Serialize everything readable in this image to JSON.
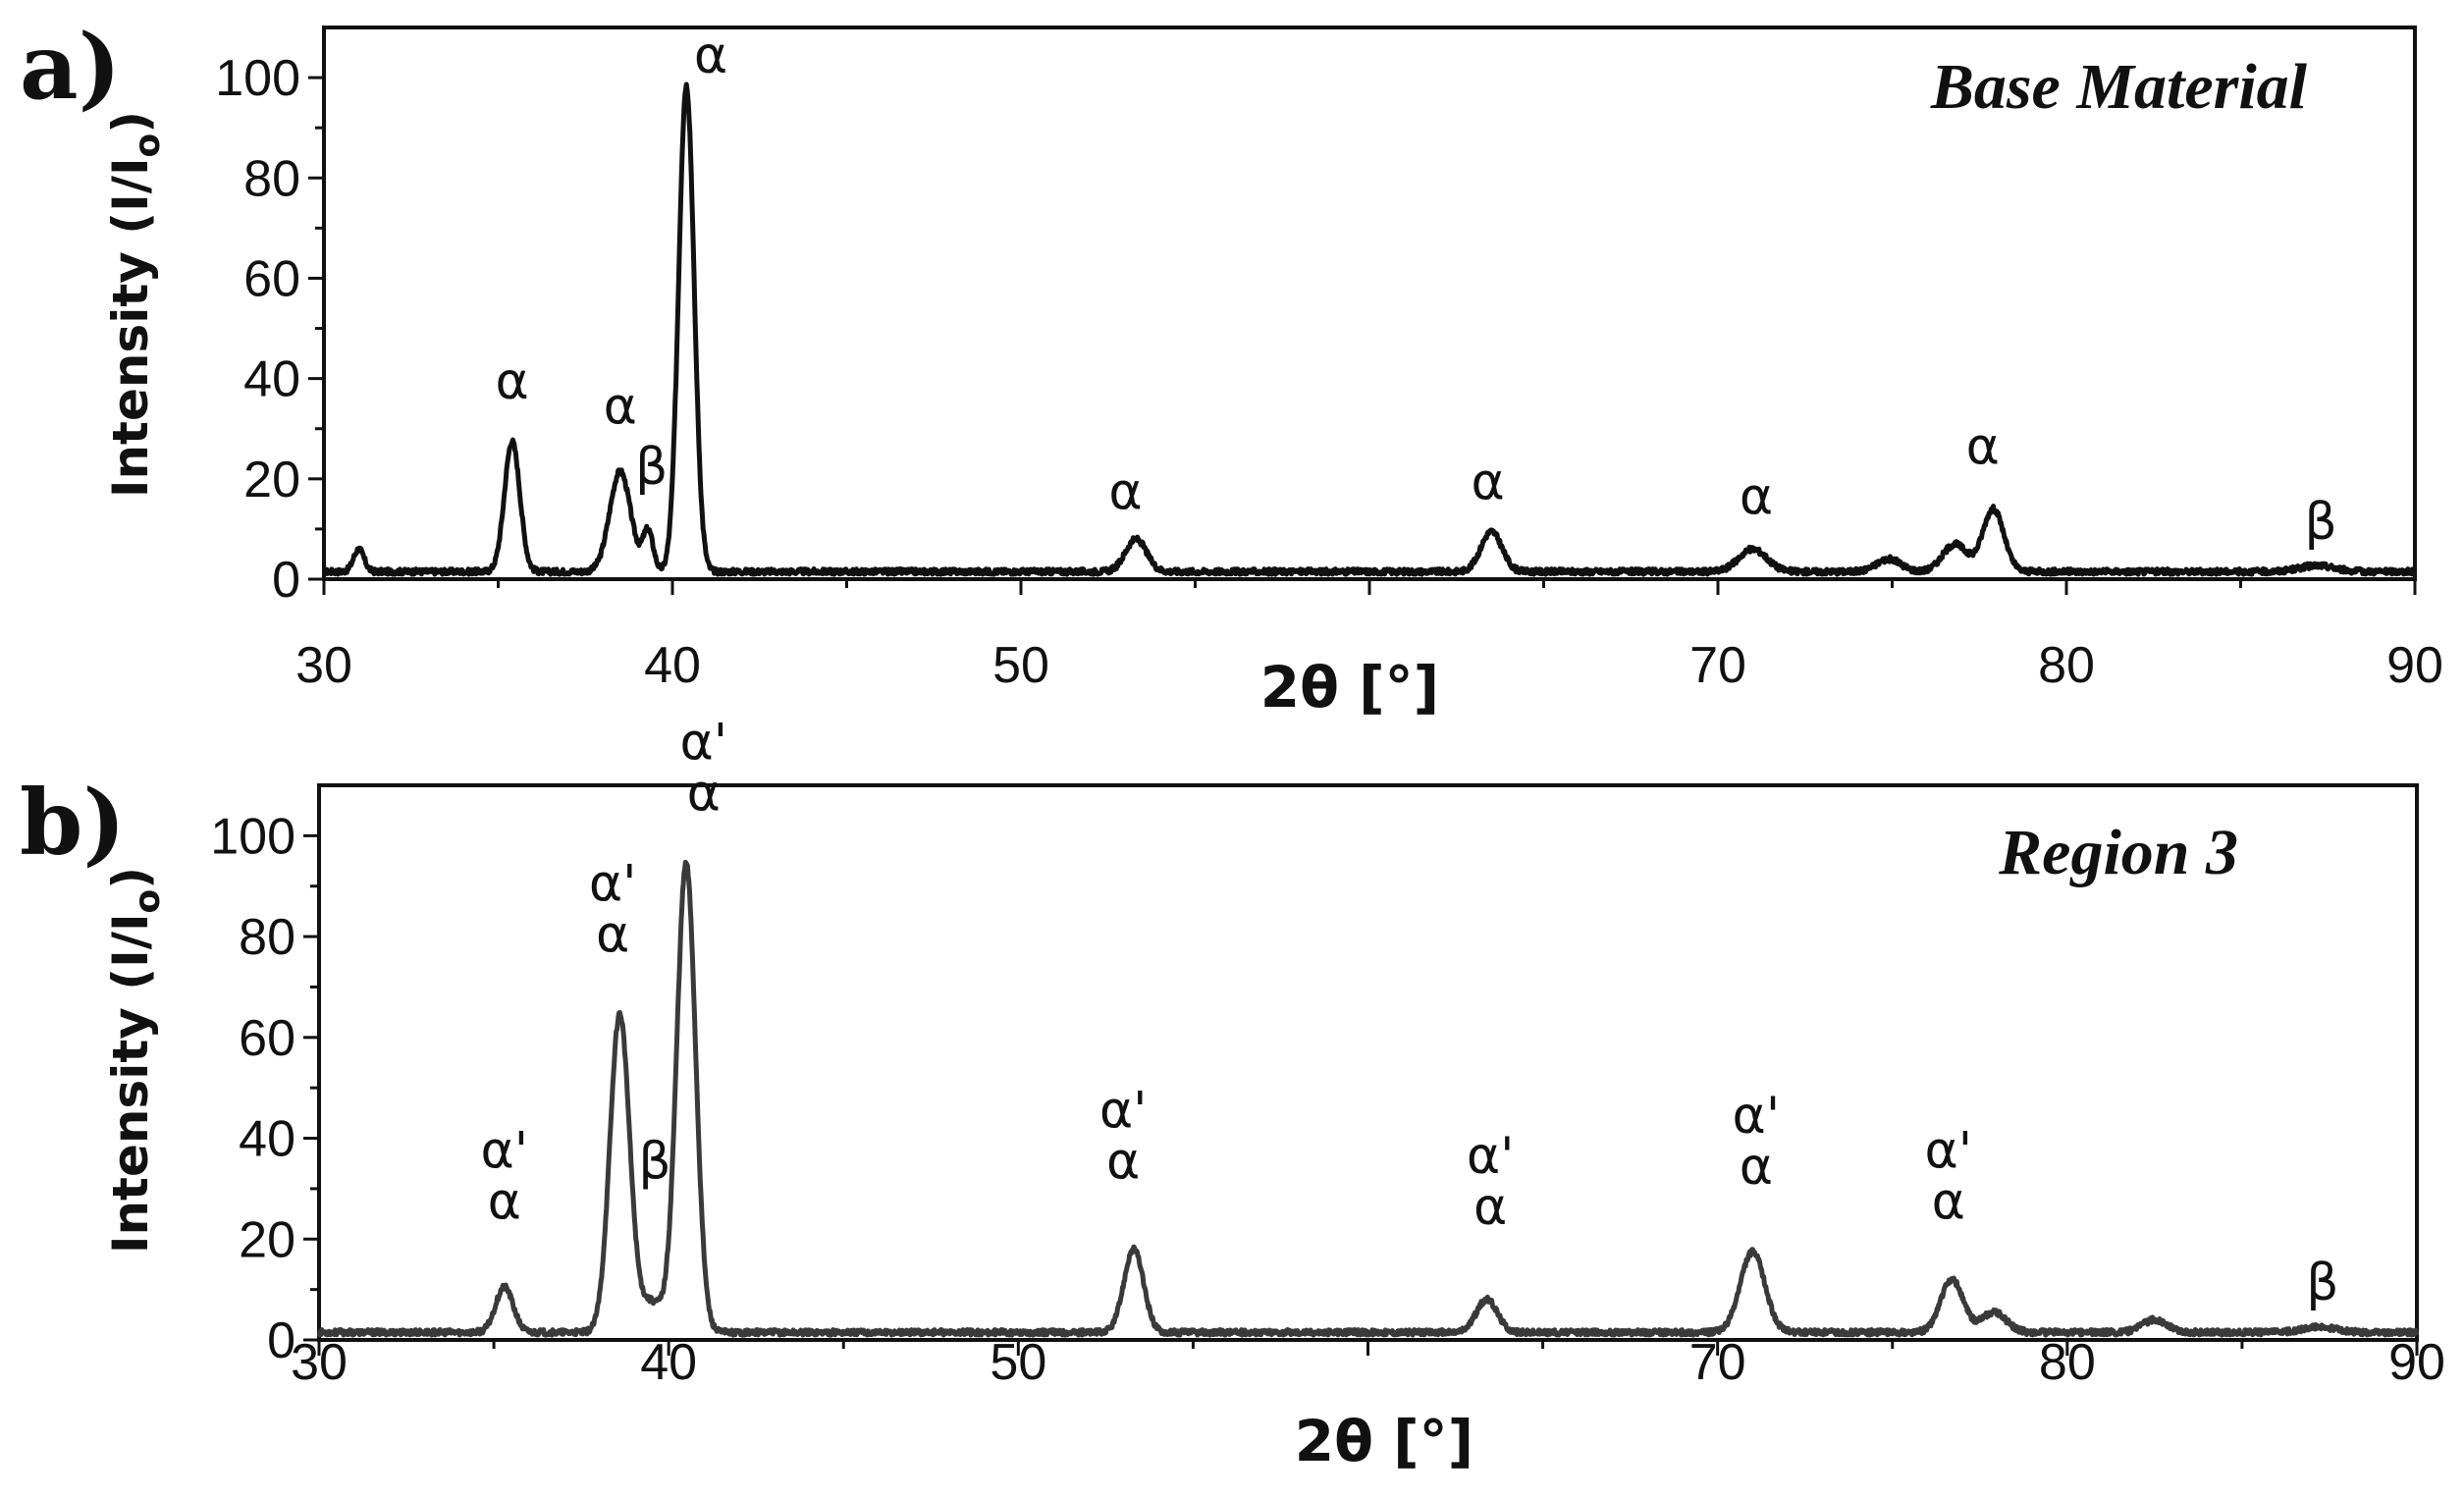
{
  "chart_data": [
    {
      "type": "line",
      "panel_label": "a)",
      "title": "Base Material",
      "xlabel": "2θ [°]",
      "ylabel": "Intensity (I/I",
      "ylabel_sub": "o",
      "ylabel_close": ")",
      "xlim": [
        30,
        90
      ],
      "ylim": [
        0,
        110
      ],
      "xticks": [
        30,
        40,
        50,
        60,
        70,
        80,
        90
      ],
      "xtick_labels": [
        "30",
        "40",
        "50",
        "",
        "70",
        "80",
        "90"
      ],
      "yticks": [
        0,
        20,
        40,
        60,
        80,
        100
      ],
      "ytick_labels": [
        "0",
        "20",
        "40",
        "60",
        "80",
        "100"
      ],
      "grid": false,
      "line_color": "#111111",
      "baseline": 1.5,
      "peaks": [
        {
          "x": 31.0,
          "height": 4.5,
          "width": 0.15
        },
        {
          "x": 35.4,
          "height": 26,
          "width": 0.22
        },
        {
          "x": 38.5,
          "height": 20,
          "width": 0.3
        },
        {
          "x": 39.3,
          "height": 8,
          "width": 0.15
        },
        {
          "x": 40.4,
          "height": 97,
          "width": 0.22
        },
        {
          "x": 53.3,
          "height": 6.5,
          "width": 0.3
        },
        {
          "x": 63.5,
          "height": 8,
          "width": 0.3
        },
        {
          "x": 71.0,
          "height": 4.5,
          "width": 0.4
        },
        {
          "x": 74.9,
          "height": 2.5,
          "width": 0.35
        },
        {
          "x": 76.8,
          "height": 5.5,
          "width": 0.35
        },
        {
          "x": 77.9,
          "height": 12.5,
          "width": 0.3
        },
        {
          "x": 87.2,
          "height": 1.2,
          "width": 0.5
        }
      ],
      "annotations": [
        {
          "lines": [
            "α"
          ],
          "x": 35.4,
          "y": 36
        },
        {
          "lines": [
            "α"
          ],
          "x": 38.5,
          "y": 31
        },
        {
          "lines": [
            "β"
          ],
          "x": 39.4,
          "y": 19
        },
        {
          "lines": [
            "α"
          ],
          "x": 41.1,
          "y": 101
        },
        {
          "lines": [
            "α"
          ],
          "x": 53.0,
          "y": 14
        },
        {
          "lines": [
            "α"
          ],
          "x": 63.4,
          "y": 16
        },
        {
          "lines": [
            "α"
          ],
          "x": 71.1,
          "y": 13
        },
        {
          "lines": [
            "α"
          ],
          "x": 77.6,
          "y": 23
        },
        {
          "lines": [
            "β"
          ],
          "x": 87.3,
          "y": 8
        }
      ]
    },
    {
      "type": "line",
      "panel_label": "b)",
      "title": "Region 3",
      "xlabel": "2θ [°]",
      "ylabel": "Intensity (I/I",
      "ylabel_sub": "o",
      "ylabel_close": ")",
      "xlim": [
        30,
        90
      ],
      "ylim": [
        0,
        110
      ],
      "xticks": [
        30,
        40,
        50,
        60,
        70,
        80,
        90
      ],
      "xtick_labels": [
        "30",
        "40",
        "50",
        "",
        "70",
        "80",
        "90"
      ],
      "yticks": [
        0,
        20,
        40,
        60,
        80,
        100
      ],
      "ytick_labels": [
        "0",
        "20",
        "40",
        "60",
        "80",
        "100"
      ],
      "grid": false,
      "line_color": "#3a3a3a",
      "baseline": 1.5,
      "peaks": [
        {
          "x": 35.3,
          "height": 9,
          "width": 0.25
        },
        {
          "x": 38.6,
          "height": 63,
          "width": 0.28
        },
        {
          "x": 39.5,
          "height": 6,
          "width": 0.35
        },
        {
          "x": 40.5,
          "height": 93,
          "width": 0.27
        },
        {
          "x": 53.3,
          "height": 16.5,
          "width": 0.28
        },
        {
          "x": 63.4,
          "height": 6.5,
          "width": 0.3
        },
        {
          "x": 71.0,
          "height": 16,
          "width": 0.35
        },
        {
          "x": 76.7,
          "height": 10.5,
          "width": 0.32
        },
        {
          "x": 77.9,
          "height": 4,
          "width": 0.35
        },
        {
          "x": 82.5,
          "height": 2.5,
          "width": 0.35
        },
        {
          "x": 87.2,
          "height": 1,
          "width": 0.5
        }
      ],
      "annotations": [
        {
          "lines": [
            "α'",
            "α"
          ],
          "x": 35.3,
          "y": 24
        },
        {
          "lines": [
            "α'",
            "α"
          ],
          "x": 38.4,
          "y": 77
        },
        {
          "lines": [
            "β"
          ],
          "x": 39.6,
          "y": 32
        },
        {
          "lines": [
            "α'",
            "α"
          ],
          "x": 41.0,
          "y": 105
        },
        {
          "lines": [
            "α'",
            "α"
          ],
          "x": 53.0,
          "y": 32
        },
        {
          "lines": [
            "α'",
            "α"
          ],
          "x": 63.5,
          "y": 23
        },
        {
          "lines": [
            "α'",
            "α"
          ],
          "x": 71.1,
          "y": 31
        },
        {
          "lines": [
            "α'",
            "α"
          ],
          "x": 76.6,
          "y": 24
        },
        {
          "lines": [
            "β"
          ],
          "x": 87.3,
          "y": 8
        }
      ]
    }
  ]
}
